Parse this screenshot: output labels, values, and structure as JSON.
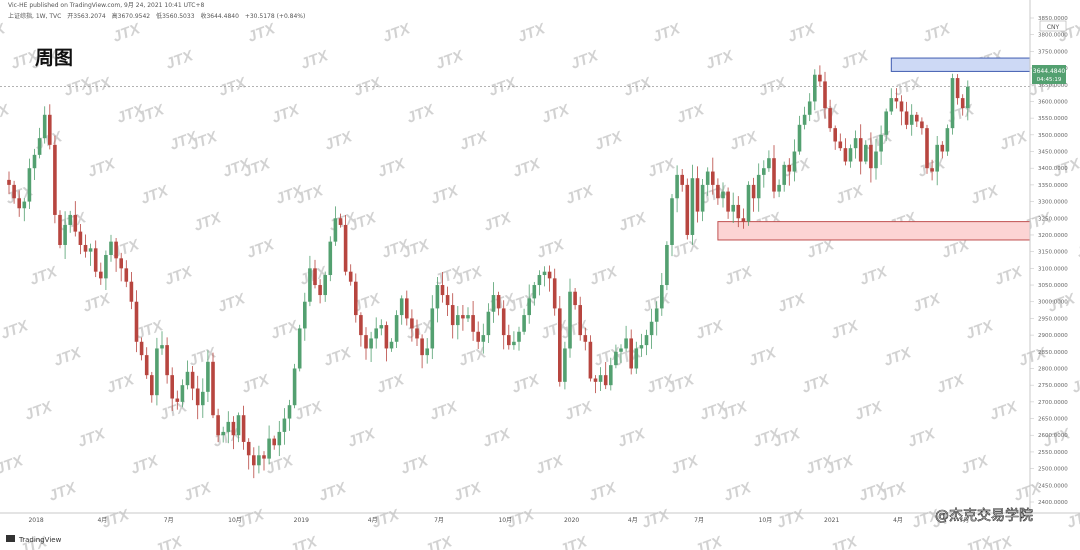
{
  "header": {
    "publisher": "Vic-HE published on TradingView.com, 9月 24, 2021 10:41 UTC+8",
    "symbol_line": "上证综指, 1W, TVC",
    "open_label": "开",
    "open_value": "3563.2074",
    "high_label": "高",
    "high_value": "3670.9542",
    "low_label": "低",
    "low_value": "3560.5033",
    "close_label": "收",
    "close_value": "3644.4840",
    "change": "+30.5178 (+0.84%)"
  },
  "title": "周图",
  "price_tag": {
    "value": "3644.4840",
    "countdown": "04:45:19"
  },
  "currency": "CNY",
  "footer": {
    "brand": "TradingView",
    "watermark_text": "@杰克交易学院"
  },
  "watermark_logo": "JTX",
  "colors": {
    "up": "#53a070",
    "down": "#b7453f",
    "resistance_fill": "#cdd9f5",
    "resistance_stroke": "#3f5bb0",
    "support_fill": "#fcd4d4",
    "support_stroke": "#c05050",
    "price_line": "#9a9a9a"
  },
  "chart_data": {
    "type": "candlestick",
    "timeframe": "1W",
    "ylim": [
      2400,
      3850
    ],
    "y_ticks": [
      2400,
      2450,
      2500,
      2550,
      2600,
      2650,
      2700,
      2750,
      2800,
      2850,
      2900,
      2950,
      3000,
      3050,
      3100,
      3150,
      3200,
      3250,
      3300,
      3350,
      3400,
      3450,
      3500,
      3550,
      3600,
      3650,
      3700,
      3750,
      3800,
      3850
    ],
    "x_ticks": [
      {
        "label": "2018",
        "idx": 1
      },
      {
        "label": "4月",
        "idx": 14
      },
      {
        "label": "7月",
        "idx": 27
      },
      {
        "label": "10月",
        "idx": 40
      },
      {
        "label": "2019",
        "idx": 53
      },
      {
        "label": "4月",
        "idx": 67
      },
      {
        "label": "7月",
        "idx": 80
      },
      {
        "label": "10月",
        "idx": 93
      },
      {
        "label": "2020",
        "idx": 106
      },
      {
        "label": "4月",
        "idx": 118
      },
      {
        "label": "7月",
        "idx": 131
      },
      {
        "label": "10月",
        "idx": 144
      },
      {
        "label": "2021",
        "idx": 157
      },
      {
        "label": "4月",
        "idx": 170
      },
      {
        "label": "7月",
        "idx": 183
      }
    ],
    "closes": [
      3350,
      3310,
      3280,
      3300,
      3400,
      3440,
      3490,
      3560,
      3470,
      3260,
      3170,
      3230,
      3260,
      3210,
      3170,
      3150,
      3160,
      3090,
      3070,
      3140,
      3180,
      3130,
      3100,
      3060,
      3000,
      2880,
      2840,
      2780,
      2720,
      2860,
      2870,
      2780,
      2710,
      2700,
      2750,
      2790,
      2740,
      2690,
      2730,
      2820,
      2660,
      2600,
      2610,
      2640,
      2600,
      2660,
      2580,
      2540,
      2510,
      2540,
      2530,
      2590,
      2570,
      2610,
      2650,
      2690,
      2800,
      2920,
      3000,
      3100,
      3050,
      3020,
      3080,
      3180,
      3250,
      3230,
      3090,
      3060,
      2960,
      2900,
      2860,
      2890,
      2920,
      2930,
      2860,
      2880,
      2960,
      3010,
      2950,
      2920,
      2890,
      2840,
      2860,
      2980,
      3050,
      3020,
      2990,
      2930,
      2960,
      2950,
      2960,
      2910,
      2880,
      2900,
      2970,
      3020,
      2980,
      2900,
      2870,
      2880,
      2910,
      2960,
      3010,
      3050,
      3080,
      3090,
      3070,
      2980,
      2760,
      2860,
      3030,
      2990,
      2900,
      2880,
      2770,
      2760,
      2780,
      2750,
      2810,
      2850,
      2860,
      2890,
      2800,
      2860,
      2870,
      2900,
      2940,
      2980,
      3050,
      3170,
      3310,
      3380,
      3350,
      3200,
      3370,
      3270,
      3350,
      3390,
      3350,
      3310,
      3330,
      3270,
      3290,
      3250,
      3240,
      3350,
      3310,
      3380,
      3400,
      3430,
      3330,
      3350,
      3410,
      3390,
      3450,
      3530,
      3560,
      3600,
      3680,
      3660,
      3580,
      3520,
      3480,
      3460,
      3420,
      3460,
      3490,
      3420,
      3470,
      3400,
      3450,
      3500,
      3570,
      3610,
      3600,
      3570,
      3530,
      3560,
      3540,
      3520,
      3400,
      3390,
      3470,
      3450,
      3520,
      3670,
      3610,
      3580,
      3644
    ],
    "resistance_zone": {
      "x_start_idx": 173,
      "y_low": 3690,
      "y_high": 3730
    },
    "support_zone": {
      "x_start_idx": 139,
      "y_low": 3185,
      "y_high": 3240
    },
    "last_price": 3644.484
  }
}
